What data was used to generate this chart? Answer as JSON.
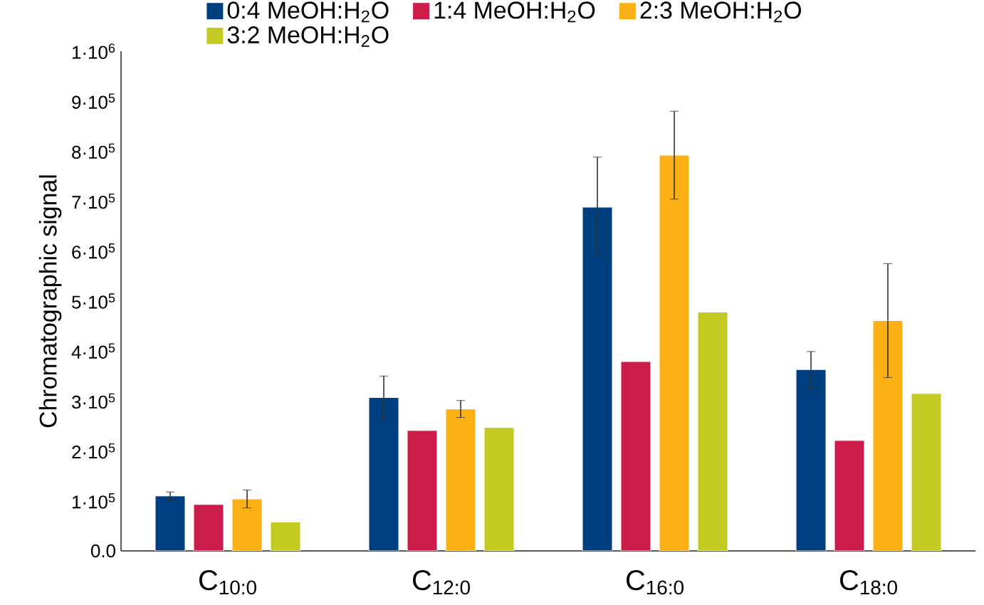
{
  "chart_data": {
    "type": "bar",
    "ylabel": "Chromatographic signal",
    "categories": [
      "C$_{10:0}$",
      "C$_{12:0}$",
      "C$_{16:0}$",
      "C$_{18:0}$"
    ],
    "series": [
      {
        "name": "0:4 MeOH:H$_{2}$O",
        "color": "#003f7f",
        "values": [
          110000,
          307000,
          688000,
          363000
        ],
        "errors": [
          8000,
          43000,
          100000,
          36000
        ]
      },
      {
        "name": "1:4 MeOH:H$_{2}$O",
        "color": "#cb1c4a",
        "values": [
          93000,
          241000,
          379000,
          221000
        ]
      },
      {
        "name": "2:3 MeOH:H$_{2}$O",
        "color": "#fbb116",
        "values": [
          104000,
          284000,
          792000,
          461000
        ],
        "errors": [
          18000,
          17000,
          88000,
          114000
        ]
      },
      {
        "name": "3:2 MeOH:H$_{2}$O",
        "color": "#c3cb22",
        "values": [
          58000,
          247000,
          478000,
          315000
        ]
      }
    ],
    "ylim": [
      0,
      1000000
    ],
    "yticks": [
      {
        "value": 0,
        "label": "0.0"
      },
      {
        "value": 100000,
        "label": "1·10$^{5}$"
      },
      {
        "value": 200000,
        "label": "2·10$^{5}$"
      },
      {
        "value": 300000,
        "label": "3·10$^{5}$"
      },
      {
        "value": 400000,
        "label": "4·10$^{5}$"
      },
      {
        "value": 500000,
        "label": "5·10$^{5}$"
      },
      {
        "value": 600000,
        "label": "6·10$^{5}$"
      },
      {
        "value": 700000,
        "label": "7·10$^{5}$"
      },
      {
        "value": 800000,
        "label": "8·10$^{5}$"
      },
      {
        "value": 900000,
        "label": "9·10$^{5}$"
      },
      {
        "value": 1000000,
        "label": "1·10$^{6}$"
      }
    ],
    "grid": false,
    "legend": "top"
  }
}
